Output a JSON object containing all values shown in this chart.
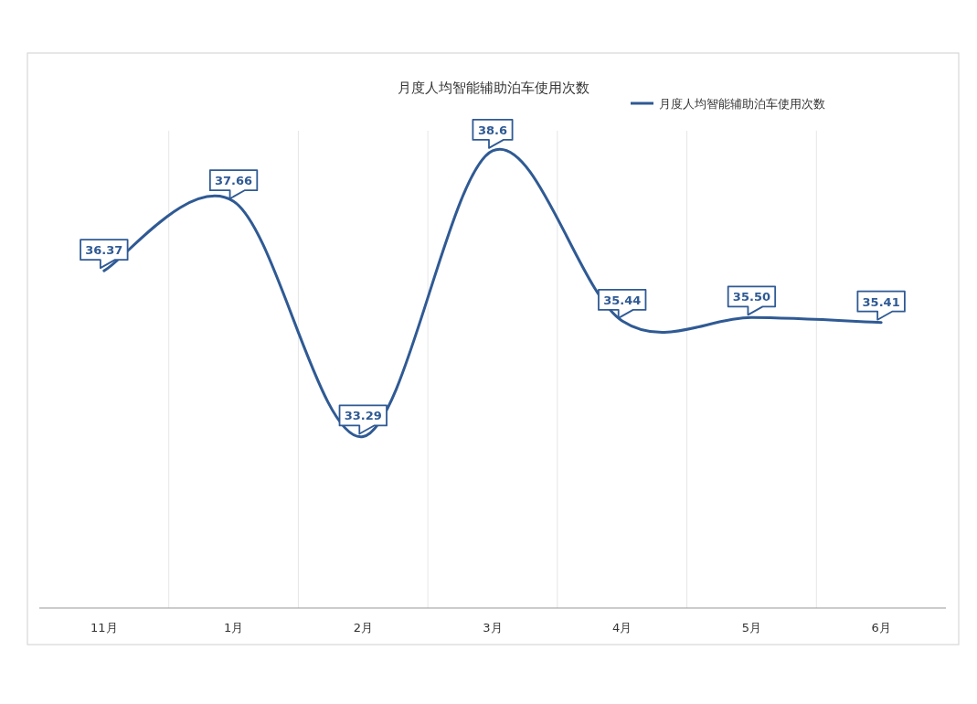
{
  "chart_data": {
    "type": "line",
    "title": "月度人均智能辅助泊车使用次数",
    "categories": [
      "11月",
      "1月",
      "2月",
      "3月",
      "4月",
      "5月",
      "6月"
    ],
    "series": [
      {
        "name": "月度人均智能辅助泊车使用次数",
        "color": "#2f5a94",
        "values": [
          36.37,
          37.66,
          33.29,
          38.6,
          35.44,
          35.5,
          35.41
        ],
        "value_labels": [
          "36.37",
          "37.66",
          "33.29",
          "38.6",
          "35.44",
          "35.50",
          "35.41"
        ]
      }
    ],
    "grid": "x",
    "legend": "top right",
    "marker": "none",
    "line_style": "solid"
  }
}
